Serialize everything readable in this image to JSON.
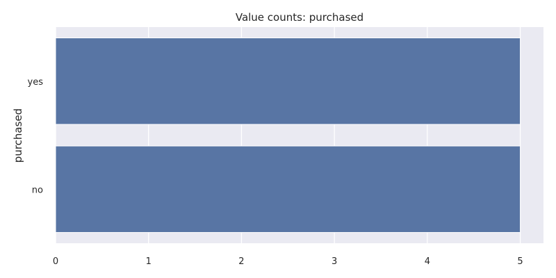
{
  "chart_data": {
    "type": "bar",
    "orientation": "horizontal",
    "title": "Value counts: purchased",
    "xlabel": "",
    "ylabel": "purchased",
    "categories": [
      "yes",
      "no"
    ],
    "values": [
      5,
      5
    ],
    "xlim": [
      0,
      5.25
    ],
    "xticks": [
      0,
      1,
      2,
      3,
      4,
      5
    ],
    "grid": true,
    "colors": {
      "bar": "#5875a4",
      "background": "#eaeaf2",
      "grid": "#ffffff"
    }
  }
}
